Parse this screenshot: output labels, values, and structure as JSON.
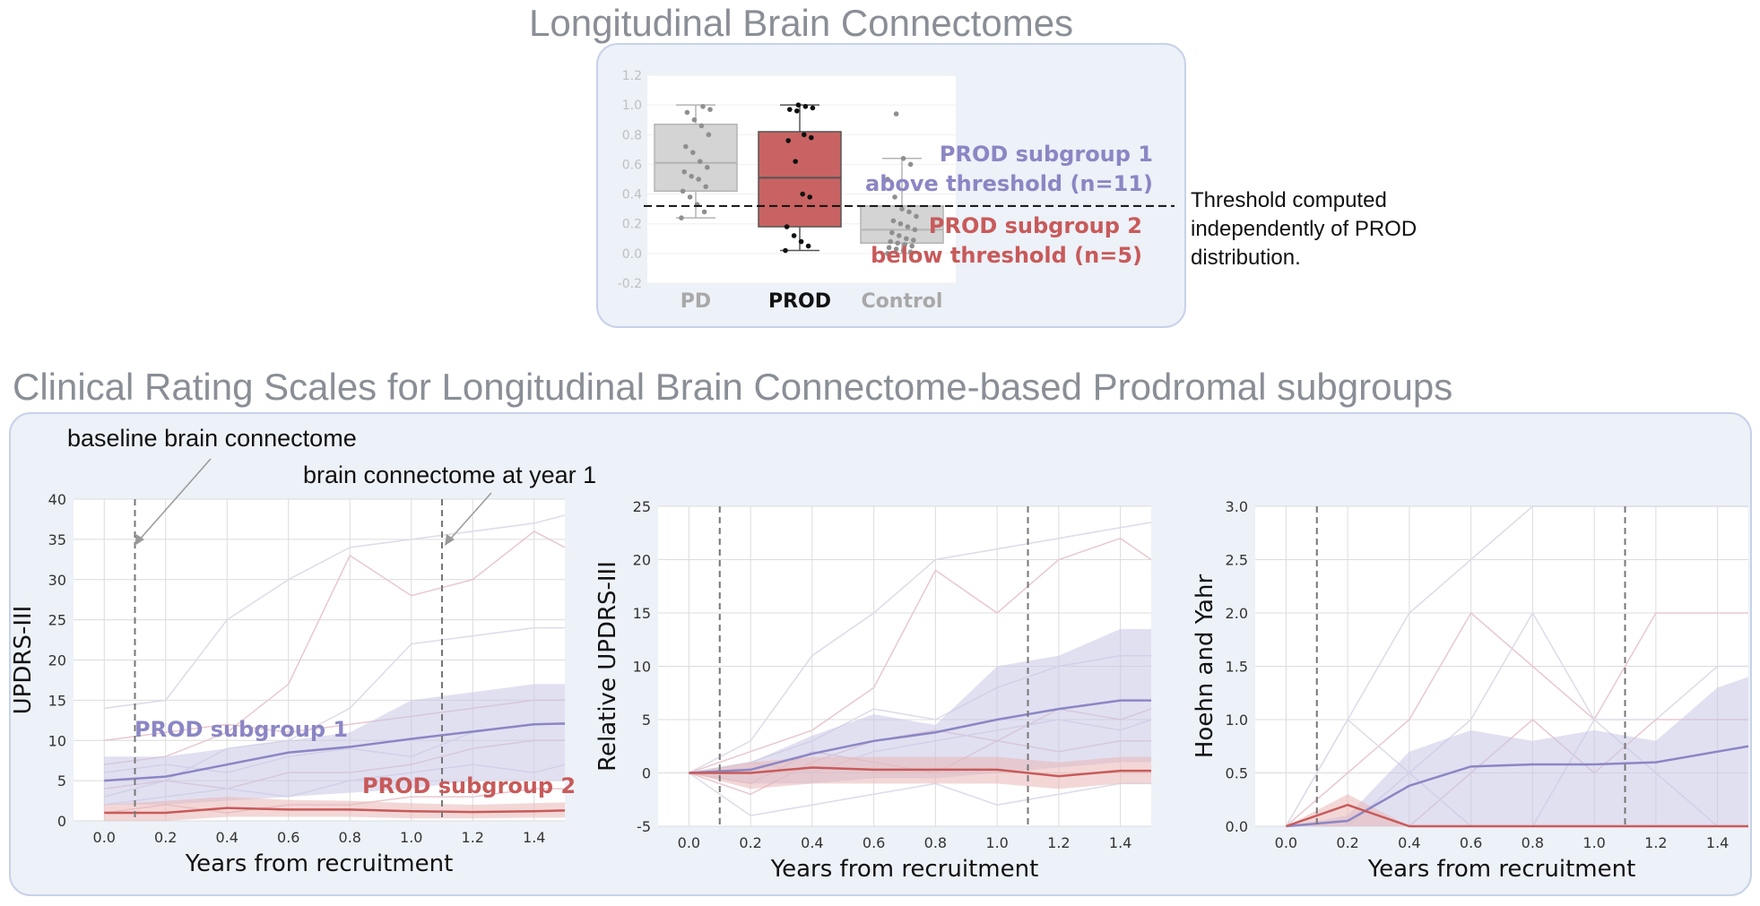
{
  "top": {
    "title": "Longitudinal Brain Connectomes",
    "threshold_note": "Threshold computed\nindependently of PROD\ndistribution."
  },
  "bottom": {
    "title": "Clinical Rating Scales for Longitudinal Brain Connectome-based Prodromal subgroups",
    "annot_baseline": "baseline brain connectome",
    "annot_year1": "brain connectome at year 1"
  },
  "colors": {
    "purple": "#8b86c4",
    "red": "#c85a5a",
    "grey_box": "#d4d4d4",
    "prod_box": "#c96363",
    "panel_bg": "#edf1f8"
  },
  "chart_data": [
    {
      "type": "box",
      "ylim": [
        -0.2,
        1.2
      ],
      "yticks": [
        "-0.2",
        "0.0",
        "0.2",
        "0.4",
        "0.6",
        "0.8",
        "1.0",
        "1.2"
      ],
      "categories": [
        "PD",
        "PROD",
        "Control"
      ],
      "boxes": [
        {
          "name": "PD",
          "q1": 0.42,
          "median": 0.61,
          "q3": 0.87,
          "whisker_low": 0.24,
          "whisker_high": 1.0,
          "points": [
            0.24,
            0.28,
            0.33,
            0.38,
            0.42,
            0.45,
            0.5,
            0.52,
            0.55,
            0.58,
            0.62,
            0.68,
            0.72,
            0.8,
            0.86,
            0.9,
            0.95,
            0.97,
            0.99
          ]
        },
        {
          "name": "PROD",
          "q1": 0.18,
          "median": 0.51,
          "q3": 0.82,
          "whisker_low": 0.02,
          "whisker_high": 1.0,
          "points": [
            0.02,
            0.05,
            0.08,
            0.12,
            0.18,
            0.38,
            0.4,
            0.62,
            0.76,
            0.78,
            0.8,
            0.96,
            0.97,
            0.98,
            0.99,
            1.0
          ]
        },
        {
          "name": "Control",
          "q1": 0.07,
          "median": 0.16,
          "q3": 0.32,
          "whisker_low": 0.0,
          "whisker_high": 0.64,
          "points": [
            0.0,
            0.01,
            0.02,
            0.03,
            0.04,
            0.05,
            0.06,
            0.07,
            0.08,
            0.09,
            0.1,
            0.12,
            0.14,
            0.16,
            0.18,
            0.2,
            0.22,
            0.25,
            0.28,
            0.3,
            0.38,
            0.5,
            0.6,
            0.64,
            0.94
          ]
        }
      ],
      "threshold": 0.32,
      "annotations": [
        "PROD subgroup 1\nabove threshold (n=11)",
        "PROD subgroup 2\nbelow threshold (n=5)"
      ]
    },
    {
      "type": "line",
      "xlabel": "Years from recruitment",
      "ylabel": "UPDRS-III",
      "xlim": [
        -0.1,
        1.5
      ],
      "ylim": [
        0,
        40
      ],
      "xticks": [
        "0.0",
        "0.2",
        "0.4",
        "0.6",
        "0.8",
        "1.0",
        "1.2",
        "1.4"
      ],
      "yticks": [
        "0",
        "5",
        "10",
        "15",
        "20",
        "25",
        "30",
        "35",
        "40"
      ],
      "vlines": [
        0.1,
        1.1
      ],
      "x": [
        0.0,
        0.2,
        0.4,
        0.6,
        0.8,
        1.0,
        1.2,
        1.4,
        1.5
      ],
      "series": [
        {
          "name": "PROD subgroup 1",
          "values": [
            5,
            5.5,
            7,
            8.5,
            9.2,
            10.2,
            11.1,
            12,
            12.1
          ],
          "band_low": [
            2,
            2,
            2.5,
            3,
            3.5,
            4,
            5,
            5,
            5
          ],
          "band_high": [
            8,
            8,
            9,
            10,
            11,
            15,
            16,
            17,
            17
          ]
        },
        {
          "name": "PROD subgroup 2",
          "values": [
            1,
            1,
            1.6,
            1.4,
            1.4,
            1.2,
            1.1,
            1.2,
            1.3
          ],
          "band_low": [
            0,
            0,
            0.5,
            0.5,
            0.5,
            0.3,
            0.3,
            0.4,
            0.4
          ],
          "band_high": [
            2,
            2.5,
            3,
            2.6,
            2.5,
            2.2,
            2,
            2.2,
            2.3
          ]
        }
      ],
      "faint_traces": [
        [
          14,
          15,
          25,
          30,
          34,
          35,
          36,
          37,
          38
        ],
        [
          7,
          8,
          11,
          17,
          33,
          28,
          30,
          36,
          34
        ],
        [
          3,
          5,
          9,
          10,
          14,
          22,
          23,
          24,
          24
        ],
        [
          10,
          11,
          12,
          11,
          12,
          13,
          14,
          15,
          15
        ],
        [
          6,
          7,
          6,
          8,
          9,
          8,
          11,
          12,
          12
        ],
        [
          4,
          5,
          4,
          6,
          6,
          7,
          9,
          10,
          10
        ],
        [
          2,
          3,
          4,
          3,
          5,
          6,
          7,
          6,
          7
        ],
        [
          1,
          2,
          1,
          2,
          2,
          3,
          3,
          4,
          4
        ]
      ]
    },
    {
      "type": "line",
      "xlabel": "Years from recruitment",
      "ylabel": "Relative UPDRS-III",
      "xlim": [
        -0.1,
        1.5
      ],
      "ylim": [
        -5,
        25
      ],
      "xticks": [
        "0.0",
        "0.2",
        "0.4",
        "0.6",
        "0.8",
        "1.0",
        "1.2",
        "1.4"
      ],
      "yticks": [
        "-5",
        "0",
        "5",
        "10",
        "15",
        "20",
        "25"
      ],
      "vlines": [
        0.1,
        1.1
      ],
      "x": [
        0.0,
        0.2,
        0.4,
        0.6,
        0.8,
        1.0,
        1.2,
        1.4,
        1.5
      ],
      "series": [
        {
          "name": "PROD subgroup 1",
          "values": [
            0,
            0.3,
            1.8,
            3,
            3.8,
            5,
            6,
            6.8,
            6.8
          ],
          "band_low": [
            0,
            -1,
            -1,
            -0.5,
            -0.5,
            0,
            0.5,
            1,
            1
          ],
          "band_high": [
            0,
            1,
            3.5,
            5.5,
            4.5,
            10,
            11,
            13.5,
            13.5
          ]
        },
        {
          "name": "PROD subgroup 2",
          "values": [
            0,
            0,
            0.5,
            0.3,
            0.3,
            0.3,
            -0.3,
            0.2,
            0.2
          ],
          "band_low": [
            0,
            -1.5,
            -1,
            -1,
            -1,
            -1,
            -1.5,
            -1,
            -1
          ],
          "band_high": [
            0,
            1,
            1.5,
            1.5,
            1.5,
            1.5,
            1,
            1.5,
            1.5
          ]
        }
      ],
      "faint_traces": [
        [
          0,
          3,
          11,
          15,
          20,
          21,
          22,
          23,
          23.5
        ],
        [
          0,
          2,
          4,
          8,
          19,
          15,
          20,
          22,
          20
        ],
        [
          0,
          1,
          3,
          6,
          5,
          8,
          10,
          11,
          11
        ],
        [
          0,
          -2,
          1,
          3,
          4,
          3,
          6,
          5,
          6
        ],
        [
          0,
          1,
          0,
          2,
          3,
          4,
          5,
          4,
          5
        ],
        [
          0,
          -1,
          2,
          1,
          0,
          3,
          2,
          3,
          3
        ],
        [
          0,
          -4,
          -3,
          -2,
          -1,
          -3,
          -2,
          -1,
          -1
        ]
      ]
    },
    {
      "type": "line",
      "xlabel": "Years from recruitment",
      "ylabel": "Hoehn and Yahr",
      "xlim": [
        -0.1,
        1.5
      ],
      "ylim": [
        0,
        3.0
      ],
      "xticks": [
        "0.0",
        "0.2",
        "0.4",
        "0.6",
        "0.8",
        "1.0",
        "1.2",
        "1.4"
      ],
      "yticks": [
        "0.0",
        "0.5",
        "1.0",
        "1.5",
        "2.0",
        "2.5",
        "3.0"
      ],
      "vlines": [
        0.1,
        1.1
      ],
      "x": [
        0.0,
        0.2,
        0.4,
        0.6,
        0.8,
        1.0,
        1.2,
        1.4,
        1.5
      ],
      "series": [
        {
          "name": "PROD subgroup 1",
          "values": [
            0,
            0.05,
            0.38,
            0.56,
            0.58,
            0.58,
            0.6,
            0.7,
            0.75
          ],
          "band_low": [
            0,
            0,
            0,
            0,
            0,
            0,
            0,
            0,
            0
          ],
          "band_high": [
            0,
            0.1,
            0.7,
            0.9,
            0.8,
            0.9,
            0.8,
            1.3,
            1.4
          ]
        },
        {
          "name": "PROD subgroup 2",
          "values": [
            0,
            0.2,
            0,
            0,
            0,
            0,
            0,
            0,
            0
          ],
          "band_low": [
            0,
            0,
            0,
            0,
            0,
            0,
            0,
            0,
            0
          ],
          "band_high": [
            0,
            0.3,
            0,
            0,
            0,
            0,
            0,
            0,
            0
          ]
        }
      ],
      "faint_traces": [
        [
          0,
          1,
          2,
          2.5,
          3,
          3,
          3,
          3,
          3
        ],
        [
          0,
          0.5,
          1,
          2,
          1.5,
          1,
          2,
          2,
          2
        ],
        [
          0,
          0,
          0.5,
          1,
          2,
          1,
          1,
          1.5,
          1.5
        ],
        [
          0,
          0.2,
          0,
          0.5,
          1,
          0.5,
          1,
          1,
          1
        ],
        [
          0,
          1,
          0.5,
          0,
          0,
          1,
          0.5,
          0,
          0
        ]
      ]
    }
  ]
}
